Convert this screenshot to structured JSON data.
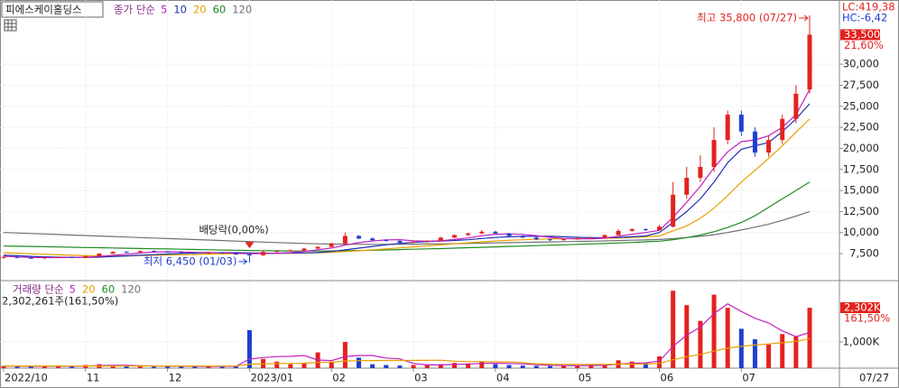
{
  "chart_data": [
    {
      "type": "candlestick",
      "title": "피에스케이홀딩스",
      "ma_label": "종가 단순",
      "lc_label": "LC:419,38",
      "hc_label": "HC:-6,42",
      "last_label": "33,500",
      "change_label": "21,60%",
      "categories": [
        "2022/10",
        null,
        null,
        null,
        null,
        null,
        "11",
        null,
        null,
        null,
        null,
        null,
        "12",
        null,
        null,
        null,
        null,
        null,
        "2023/01",
        null,
        null,
        null,
        null,
        null,
        "02",
        null,
        null,
        null,
        null,
        null,
        "03",
        null,
        null,
        null,
        null,
        null,
        "04",
        null,
        null,
        null,
        null,
        null,
        "05",
        null,
        null,
        null,
        null,
        null,
        "06",
        null,
        null,
        null,
        null,
        null,
        "07",
        null,
        null,
        null,
        null,
        null
      ],
      "last_date": "07/27",
      "open": [
        7000,
        7100,
        7000,
        6950,
        7050,
        7100,
        7000,
        7200,
        7500,
        7700,
        7650,
        7800,
        7750,
        7700,
        7600,
        7500,
        7650,
        7550,
        7400,
        7300,
        7700,
        7800,
        7900,
        8100,
        8300,
        8700,
        9600,
        9300,
        9100,
        9000,
        8800,
        8900,
        9000,
        9400,
        9700,
        9900,
        10100,
        9900,
        9600,
        9400,
        9200,
        9100,
        9200,
        9300,
        9400,
        9700,
        10200,
        10400,
        10300,
        10700,
        14500,
        16500,
        17800,
        21000,
        24000,
        22000,
        19500,
        21000,
        23500,
        27000
      ],
      "high": [
        7200,
        7200,
        7100,
        7100,
        7150,
        7150,
        7250,
        7550,
        7800,
        7800,
        7900,
        7900,
        7800,
        7750,
        7650,
        7700,
        7700,
        7600,
        7500,
        7900,
        7900,
        8000,
        8200,
        8400,
        8800,
        10000,
        9700,
        9400,
        9200,
        9100,
        9000,
        9100,
        9500,
        9800,
        10000,
        10300,
        10200,
        9950,
        9700,
        9500,
        9300,
        9300,
        9400,
        9500,
        9800,
        10400,
        10500,
        10500,
        10900,
        16000,
        17800,
        19200,
        22500,
        24500,
        24500,
        22500,
        21500,
        24000,
        27500,
        35800
      ],
      "low": [
        6900,
        6950,
        6900,
        6850,
        6950,
        6950,
        6950,
        7150,
        7450,
        7600,
        7600,
        7700,
        7650,
        7550,
        7450,
        7450,
        7500,
        7350,
        6450,
        7250,
        7650,
        7750,
        7850,
        8050,
        8250,
        8600,
        9200,
        9000,
        8950,
        8700,
        8700,
        8850,
        8950,
        9350,
        9600,
        9800,
        9800,
        9550,
        9350,
        9100,
        9000,
        9050,
        9150,
        9250,
        9350,
        9650,
        10100,
        10200,
        10250,
        10600,
        14000,
        16000,
        17200,
        20500,
        21500,
        19000,
        19000,
        20500,
        23000,
        26500
      ],
      "close": [
        7100,
        7000,
        6950,
        7050,
        7100,
        7000,
        7200,
        7500,
        7700,
        7650,
        7800,
        7750,
        7700,
        7600,
        7500,
        7650,
        7550,
        7400,
        7300,
        7700,
        7800,
        7900,
        8100,
        8300,
        8700,
        9600,
        9300,
        9100,
        9000,
        8800,
        8900,
        9000,
        9400,
        9700,
        9900,
        10100,
        9900,
        9600,
        9400,
        9200,
        9100,
        9200,
        9300,
        9400,
        9700,
        10200,
        10400,
        10300,
        10700,
        14500,
        16500,
        17800,
        21000,
        24000,
        22000,
        19500,
        21000,
        23500,
        26500,
        33500
      ],
      "up_color": "#e3221e",
      "down_color": "#1f3fd0",
      "series": [
        {
          "name": "5",
          "color": "#c020c0",
          "values": [
            7200,
            7100,
            7050,
            7030,
            7040,
            7040,
            7070,
            7170,
            7300,
            7420,
            7570,
            7680,
            7720,
            7700,
            7650,
            7640,
            7600,
            7540,
            7490,
            7520,
            7550,
            7620,
            7760,
            7960,
            8160,
            8500,
            8800,
            9000,
            9140,
            9160,
            9020,
            8960,
            9020,
            9180,
            9360,
            9620,
            9800,
            9840,
            9780,
            9640,
            9440,
            9300,
            9240,
            9260,
            9340,
            9560,
            9800,
            10000,
            10260,
            11800,
            13600,
            15500,
            17700,
            19600,
            20800,
            21000,
            21500,
            22500,
            24000,
            27000
          ]
        },
        {
          "name": "10",
          "color": "#2030b0",
          "values": [
            7300,
            7250,
            7180,
            7120,
            7080,
            7060,
            7050,
            7080,
            7150,
            7230,
            7300,
            7380,
            7450,
            7520,
            7570,
            7600,
            7620,
            7610,
            7580,
            7560,
            7550,
            7560,
            7580,
            7630,
            7750,
            7950,
            8150,
            8350,
            8550,
            8700,
            8850,
            8920,
            9000,
            9060,
            9150,
            9300,
            9420,
            9500,
            9550,
            9560,
            9550,
            9500,
            9440,
            9400,
            9380,
            9420,
            9500,
            9600,
            10000,
            11200,
            12500,
            14000,
            16000,
            18300,
            19900,
            20300,
            20700,
            22000,
            23500,
            25300
          ]
        },
        {
          "name": "20",
          "color": "#e8a000",
          "values": [
            7600,
            7550,
            7480,
            7420,
            7360,
            7300,
            7250,
            7220,
            7220,
            7240,
            7270,
            7300,
            7330,
            7370,
            7400,
            7440,
            7470,
            7500,
            7510,
            7520,
            7530,
            7550,
            7570,
            7600,
            7650,
            7740,
            7840,
            7950,
            8060,
            8180,
            8300,
            8420,
            8540,
            8660,
            8780,
            8900,
            9000,
            9080,
            9150,
            9200,
            9240,
            9270,
            9290,
            9300,
            9310,
            9350,
            9420,
            9500,
            9600,
            10200,
            10800,
            11700,
            12900,
            14400,
            16000,
            17400,
            18800,
            20300,
            21900,
            23500
          ]
        },
        {
          "name": "60",
          "color": "#208a20",
          "values": [
            8400,
            8380,
            8350,
            8320,
            8290,
            8260,
            8230,
            8200,
            8170,
            8140,
            8110,
            8080,
            8050,
            8020,
            7990,
            7960,
            7930,
            7900,
            7870,
            7850,
            7830,
            7820,
            7810,
            7810,
            7820,
            7840,
            7870,
            7900,
            7940,
            7980,
            8020,
            8060,
            8100,
            8150,
            8200,
            8250,
            8300,
            8350,
            8400,
            8450,
            8500,
            8550,
            8600,
            8650,
            8700,
            8760,
            8830,
            8900,
            8980,
            9150,
            9400,
            9700,
            10100,
            10600,
            11200,
            12000,
            13000,
            14000,
            15000,
            16000
          ]
        },
        {
          "name": "120",
          "color": "#707070",
          "values": [
            10000,
            9950,
            9890,
            9830,
            9770,
            9710,
            9650,
            9590,
            9530,
            9470,
            9410,
            9350,
            9290,
            9230,
            9170,
            9110,
            9050,
            8990,
            8930,
            8870,
            8810,
            8760,
            8710,
            8670,
            8640,
            8620,
            8610,
            8600,
            8600,
            8610,
            8620,
            8640,
            8660,
            8680,
            8710,
            8740,
            8770,
            8800,
            8830,
            8860,
            8890,
            8920,
            8950,
            8980,
            9010,
            9050,
            9090,
            9130,
            9180,
            9280,
            9400,
            9550,
            9750,
            10000,
            10300,
            10650,
            11000,
            11450,
            11950,
            12500
          ]
        }
      ],
      "ylim": [
        4400,
        37300
      ],
      "yticks": [
        {
          "value": 7500,
          "label": "7,500"
        },
        {
          "value": 10000,
          "label": "10,000"
        },
        {
          "value": 12500,
          "label": "12,500"
        },
        {
          "value": 15000,
          "label": "15,000"
        },
        {
          "value": 17500,
          "label": "17,500"
        },
        {
          "value": 20000,
          "label": "20,000"
        },
        {
          "value": 22500,
          "label": "22,500"
        },
        {
          "value": 25000,
          "label": "25,000"
        },
        {
          "value": 27500,
          "label": "27,500"
        },
        {
          "value": 30000,
          "label": "30,000"
        }
      ],
      "grid": true,
      "annotations": [
        {
          "text": "최고 35,800 (07/27)",
          "color": "#e3221e"
        },
        {
          "text": "최저 6,450 (01/03)",
          "color": "#1f3fd0"
        },
        {
          "text": "배당락(0,00%)",
          "color": "#222222"
        }
      ]
    },
    {
      "type": "bar",
      "title": "거래량 단순",
      "volume_label": "2,302,261주(161,50%)",
      "last_label": "2,302K",
      "change_label": "161,50%",
      "values": [
        80000,
        60000,
        50000,
        90000,
        70000,
        60000,
        120000,
        150000,
        90000,
        70000,
        80000,
        60000,
        70000,
        90000,
        60000,
        50000,
        70000,
        80000,
        1450000,
        350000,
        250000,
        150000,
        200000,
        600000,
        250000,
        1000000,
        400000,
        150000,
        120000,
        100000,
        120000,
        130000,
        150000,
        200000,
        180000,
        250000,
        150000,
        120000,
        100000,
        90000,
        80000,
        90000,
        100000,
        120000,
        150000,
        300000,
        250000,
        200000,
        450000,
        2950000,
        2400000,
        1800000,
        2800000,
        2300000,
        1500000,
        1100000,
        900000,
        1300000,
        1200000,
        2302261
      ],
      "series": [
        {
          "name": "5",
          "color": "#c020c0",
          "values": [
            80000,
            75000,
            70000,
            72000,
            74000,
            70000,
            78000,
            98000,
            106000,
            108000,
            94000,
            86000,
            74000,
            74000,
            70000,
            66000,
            68000,
            70000,
            346000,
            402000,
            440000,
            450000,
            480000,
            310000,
            290000,
            440000,
            480000,
            480000,
            384000,
            354000,
            178000,
            124000,
            124000,
            140000,
            156000,
            182000,
            186000,
            180000,
            160000,
            138000,
            108000,
            96000,
            92000,
            96000,
            108000,
            150000,
            184000,
            204000,
            270000,
            830000,
            1260000,
            1560000,
            2080000,
            2450000,
            2160000,
            1900000,
            1720000,
            1420000,
            1200000,
            1360000
          ]
        },
        {
          "name": "20",
          "color": "#e8a000",
          "values": [
            85000,
            84000,
            83000,
            82000,
            81000,
            80000,
            81000,
            83000,
            84000,
            84000,
            84000,
            83000,
            82000,
            82000,
            81000,
            80000,
            79000,
            79000,
            150000,
            165000,
            175000,
            180000,
            190000,
            215000,
            225000,
            270000,
            285000,
            290000,
            292000,
            293000,
            296000,
            300000,
            303000,
            260000,
            250000,
            250000,
            240000,
            237000,
            212000,
            166000,
            150000,
            143000,
            140000,
            140000,
            142000,
            150000,
            155000,
            158000,
            175000,
            320000,
            435000,
            520000,
            655000,
            760000,
            830000,
            880000,
            920000,
            965000,
            1020000,
            1120000
          ]
        }
      ],
      "other_ma": [
        {
          "name": "60",
          "color": "#208a20"
        },
        {
          "name": "120",
          "color": "#707070"
        }
      ],
      "ylim": [
        0,
        3300000
      ],
      "yticks": [
        {
          "value": 1000000,
          "label": "1,000K"
        }
      ]
    }
  ]
}
